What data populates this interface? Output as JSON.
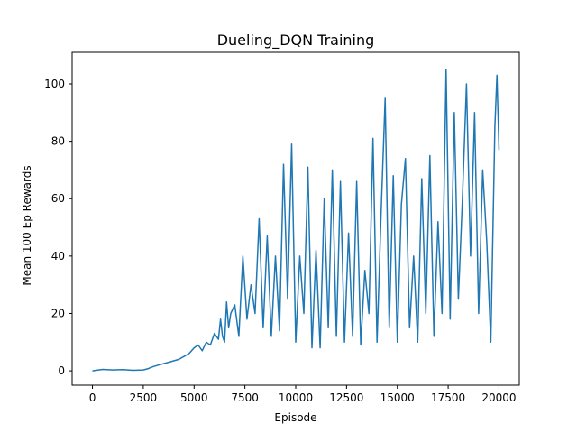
{
  "chart_data": {
    "type": "line",
    "title": "Dueling_DQN Training",
    "xlabel": "Episode",
    "ylabel": "Mean 100 Ep Rewards",
    "xlim": [
      -1000,
      21000
    ],
    "ylim": [
      -5,
      111
    ],
    "x_ticks": [
      0,
      2500,
      5000,
      7500,
      10000,
      12500,
      15000,
      17500,
      20000
    ],
    "y_ticks": [
      0,
      20,
      40,
      60,
      80,
      100
    ],
    "grid": false,
    "legend": "none",
    "series": [
      {
        "color": "#1f77b4",
        "x": [
          0,
          500,
          1000,
          1500,
          2000,
          2500,
          2750,
          3000,
          3250,
          3500,
          3750,
          4000,
          4250,
          4500,
          4750,
          5000,
          5200,
          5400,
          5600,
          5800,
          6000,
          6200,
          6300,
          6400,
          6500,
          6600,
          6700,
          6800,
          7000,
          7200,
          7400,
          7600,
          7800,
          8000,
          8200,
          8400,
          8600,
          8800,
          9000,
          9200,
          9400,
          9600,
          9800,
          10000,
          10200,
          10400,
          10600,
          10800,
          11000,
          11200,
          11400,
          11600,
          11800,
          12000,
          12200,
          12400,
          12600,
          12800,
          13000,
          13200,
          13400,
          13600,
          13800,
          14000,
          14200,
          14400,
          14600,
          14800,
          15000,
          15200,
          15400,
          15600,
          15800,
          16000,
          16200,
          16400,
          16600,
          16800,
          17000,
          17200,
          17400,
          17600,
          17800,
          18000,
          18200,
          18400,
          18600,
          18800,
          19000,
          19200,
          19400,
          19600,
          19800,
          19900,
          20000
        ],
        "y": [
          0,
          0.5,
          0.3,
          0.4,
          0.2,
          0.3,
          0.8,
          1.5,
          2,
          2.5,
          3,
          3.5,
          4,
          5,
          6,
          8,
          9,
          7,
          10,
          9,
          13,
          11,
          18,
          12,
          10,
          24,
          15,
          20,
          23,
          12,
          40,
          18,
          30,
          20,
          53,
          15,
          47,
          12,
          40,
          14,
          72,
          25,
          79,
          10,
          40,
          20,
          71,
          8,
          42,
          8,
          60,
          15,
          70,
          12,
          66,
          10,
          48,
          12,
          66,
          9,
          35,
          20,
          81,
          10,
          55,
          95,
          15,
          68,
          10,
          58,
          74,
          15,
          40,
          10,
          67,
          20,
          75,
          12,
          52,
          20,
          105,
          18,
          90,
          25,
          60,
          100,
          40,
          90,
          20,
          70,
          45,
          10,
          85,
          103,
          77
        ]
      }
    ]
  }
}
